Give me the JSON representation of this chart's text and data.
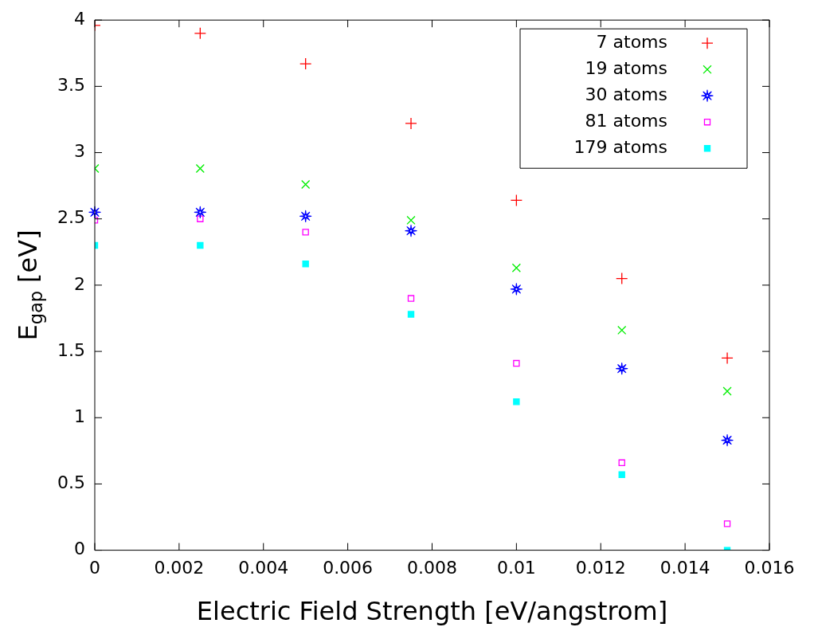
{
  "chart_data": {
    "type": "scatter",
    "xlabel": "Electric Field Strength [eV/angstrom]",
    "ylabel": "E$_{gap}$ [eV]",
    "x": [
      0,
      0.0025,
      0.005,
      0.0075,
      0.01,
      0.0125,
      0.015
    ],
    "xlim": [
      0,
      0.016
    ],
    "xticks": [
      0,
      0.002,
      0.004,
      0.006,
      0.008,
      0.01,
      0.012,
      0.014,
      0.016
    ],
    "ylim": [
      0,
      4
    ],
    "yticks": [
      0,
      0.5,
      1,
      1.5,
      2,
      2.5,
      3,
      3.5,
      4
    ],
    "grid": false,
    "legend": "top right",
    "series": [
      {
        "name": "7 atoms",
        "color": "#ff0000",
        "marker": "cross",
        "values": [
          3.96,
          3.9,
          3.67,
          3.22,
          2.64,
          2.05,
          1.45
        ]
      },
      {
        "name": "19 atoms",
        "color": "#00ee00",
        "marker": "x",
        "values": [
          2.88,
          2.88,
          2.76,
          2.49,
          2.13,
          1.66,
          1.2
        ]
      },
      {
        "name": "30 atoms",
        "color": "#0000ff",
        "marker": "star",
        "values": [
          2.55,
          2.55,
          2.52,
          2.41,
          1.97,
          1.37,
          0.83
        ]
      },
      {
        "name": "81 atoms",
        "color": "#ff00ff",
        "marker": "square",
        "values": [
          2.49,
          2.5,
          2.4,
          1.9,
          1.41,
          0.66,
          0.2
        ]
      },
      {
        "name": "179 atoms",
        "color": "#00ffff",
        "values": [
          2.3,
          2.3,
          2.16,
          1.78,
          1.12,
          0.57,
          0
        ]
      }
    ]
  }
}
